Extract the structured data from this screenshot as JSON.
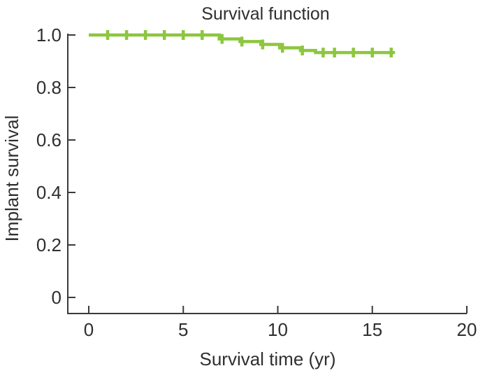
{
  "figure": {
    "background": "#ffffff"
  },
  "chart_data": {
    "type": "line",
    "subtype": "kaplan_meier_step",
    "title": "Survival function",
    "xlabel": "Survival time (yr)",
    "ylabel": "Implant survival",
    "xlim": [
      0,
      20
    ],
    "ylim": [
      0,
      1.0
    ],
    "x_ticks": [
      0,
      5,
      10,
      15,
      20
    ],
    "x_tick_labels": [
      "0",
      "5",
      "10",
      "15",
      "20"
    ],
    "y_ticks": [
      0,
      0.2,
      0.4,
      0.6,
      0.8,
      1.0
    ],
    "y_tick_labels": [
      "0",
      "0.2",
      "0.4",
      "0.6",
      "0.8",
      "1.0"
    ],
    "grid": false,
    "legend": "none",
    "colors": {
      "curve": "#8dc63f",
      "axis": "#3a3a3a",
      "text": "#2f2f2f"
    },
    "series": [
      {
        "name": "Implant survival",
        "color": "#8dc63f",
        "start": {
          "t": 0,
          "s": 1.0
        },
        "drops": [
          {
            "t": 6.9,
            "s": 0.985
          },
          {
            "t": 8.0,
            "s": 0.975
          },
          {
            "t": 9.1,
            "s": 0.964
          },
          {
            "t": 10.1,
            "s": 0.951
          },
          {
            "t": 11.2,
            "s": 0.941
          },
          {
            "t": 12.0,
            "s": 0.933
          }
        ],
        "end_t": 16.2,
        "final_s": 0.933,
        "censor_marks": [
          {
            "t": 1,
            "s": 1.0
          },
          {
            "t": 2,
            "s": 1.0
          },
          {
            "t": 3,
            "s": 1.0
          },
          {
            "t": 4,
            "s": 1.0
          },
          {
            "t": 5,
            "s": 1.0
          },
          {
            "t": 6,
            "s": 1.0
          },
          {
            "t": 7.05,
            "s": 0.985
          },
          {
            "t": 8.1,
            "s": 0.975
          },
          {
            "t": 9.2,
            "s": 0.964
          },
          {
            "t": 10.25,
            "s": 0.951
          },
          {
            "t": 11.3,
            "s": 0.941
          },
          {
            "t": 12.4,
            "s": 0.933
          },
          {
            "t": 13,
            "s": 0.933
          },
          {
            "t": 14,
            "s": 0.933
          },
          {
            "t": 15,
            "s": 0.933
          },
          {
            "t": 16,
            "s": 0.933
          }
        ]
      }
    ]
  }
}
